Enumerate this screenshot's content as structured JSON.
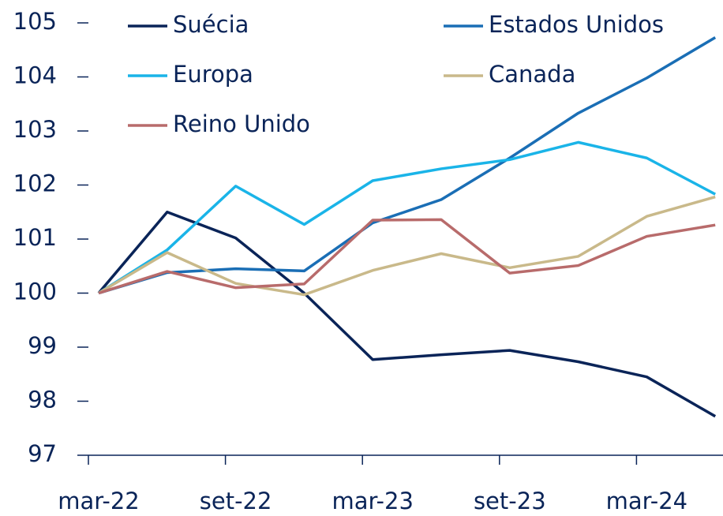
{
  "chart_data": {
    "type": "line",
    "categories": [
      "mar-22",
      null,
      "set-22",
      null,
      "mar-23",
      null,
      "set-23",
      null,
      "mar-24",
      null
    ],
    "series": [
      {
        "name": "Suécia",
        "color": "#0a2458",
        "values": [
          100,
          101.5,
          101.02,
          100.0,
          98.77,
          98.86,
          98.94,
          98.73,
          98.45,
          97.72
        ]
      },
      {
        "name": "Estados Unidos",
        "color": "#1a6eb5",
        "values": [
          100,
          100.38,
          100.45,
          100.41,
          101.3,
          101.73,
          102.5,
          103.33,
          103.98,
          104.73
        ]
      },
      {
        "name": "Europa",
        "color": "#1ab4e8",
        "values": [
          100,
          100.8,
          101.98,
          101.27,
          102.08,
          102.3,
          102.47,
          102.79,
          102.5,
          101.83
        ]
      },
      {
        "name": "Canada",
        "color": "#c9b98a",
        "values": [
          100,
          100.75,
          100.18,
          99.97,
          100.42,
          100.73,
          100.47,
          100.68,
          101.42,
          101.78
        ]
      },
      {
        "name": "Reino Unido",
        "color": "#b86b6b",
        "values": [
          100,
          100.4,
          100.1,
          100.17,
          101.35,
          101.36,
          100.37,
          100.51,
          101.05,
          101.26
        ]
      }
    ],
    "ylim": [
      97,
      105
    ],
    "yticks": [
      97,
      98,
      99,
      100,
      101,
      102,
      103,
      104,
      105
    ],
    "legend": "top"
  }
}
